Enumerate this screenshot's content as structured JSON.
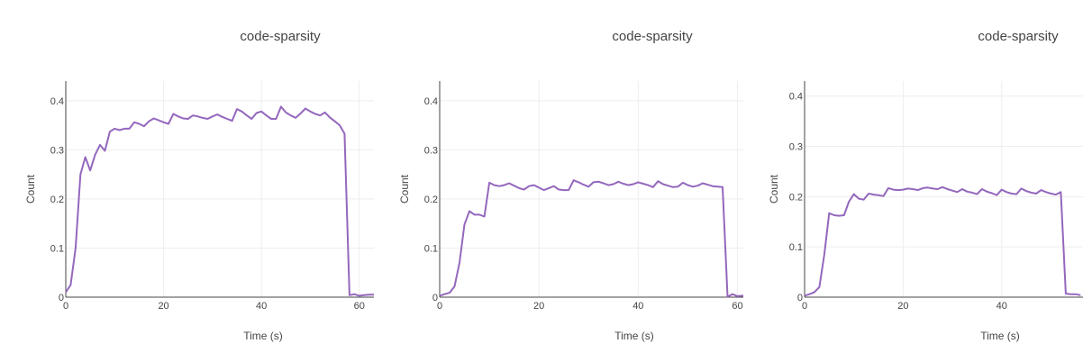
{
  "chart_data": [
    {
      "type": "line",
      "title": "code-sparsity",
      "xlabel": "Time (s)",
      "ylabel": "Count",
      "xlim": [
        0,
        63
      ],
      "ylim": [
        0,
        0.44
      ],
      "xticks": [
        0,
        20,
        40,
        60
      ],
      "yticks": [
        0,
        0.1,
        0.2,
        0.3,
        0.4
      ],
      "ytick_labels": [
        "0",
        "0.1",
        "0.2",
        "0.3",
        "0.4"
      ],
      "grid": true,
      "series": [
        {
          "color": "#9467bd",
          "x": [
            0,
            1,
            2,
            3,
            4,
            5,
            6,
            7,
            8,
            9,
            10,
            11,
            12,
            13,
            14,
            15,
            16,
            17,
            18,
            19,
            20,
            21,
            22,
            23,
            24,
            25,
            26,
            27,
            28,
            29,
            30,
            31,
            32,
            33,
            34,
            35,
            36,
            37,
            38,
            39,
            40,
            41,
            42,
            43,
            44,
            45,
            46,
            47,
            48,
            49,
            50,
            51,
            52,
            53,
            54,
            55,
            56,
            57,
            58,
            59,
            60,
            61,
            62,
            63
          ],
          "y": [
            0.01,
            0.025,
            0.1,
            0.25,
            0.285,
            0.258,
            0.29,
            0.31,
            0.298,
            0.337,
            0.343,
            0.34,
            0.343,
            0.343,
            0.356,
            0.353,
            0.348,
            0.358,
            0.364,
            0.36,
            0.356,
            0.353,
            0.373,
            0.368,
            0.364,
            0.363,
            0.37,
            0.368,
            0.365,
            0.363,
            0.368,
            0.372,
            0.367,
            0.363,
            0.359,
            0.383,
            0.378,
            0.37,
            0.363,
            0.375,
            0.378,
            0.37,
            0.363,
            0.363,
            0.388,
            0.376,
            0.37,
            0.365,
            0.374,
            0.384,
            0.378,
            0.373,
            0.37,
            0.376,
            0.366,
            0.358,
            0.35,
            0.333,
            0.004,
            0.006,
            0.003,
            0.004,
            0.005,
            0.005
          ]
        }
      ]
    },
    {
      "type": "line",
      "title": "code-sparsity",
      "xlabel": "Time (s)",
      "ylabel": "Count",
      "xlim": [
        0,
        63
      ],
      "ylim": [
        0,
        0.44
      ],
      "xticks": [
        0,
        20,
        40,
        60
      ],
      "yticks": [
        0,
        0.1,
        0.2,
        0.3,
        0.4
      ],
      "ytick_labels": [
        "0",
        "0.1",
        "0.2",
        "0.3",
        "0.4"
      ],
      "grid": true,
      "series": [
        {
          "color": "#9467bd",
          "x": [
            0,
            1,
            2,
            3,
            4,
            5,
            6,
            7,
            8,
            9,
            10,
            11,
            12,
            13,
            14,
            15,
            16,
            17,
            18,
            19,
            20,
            21,
            22,
            23,
            24,
            25,
            26,
            27,
            28,
            29,
            30,
            31,
            32,
            33,
            34,
            35,
            36,
            37,
            38,
            39,
            40,
            41,
            42,
            43,
            44,
            45,
            46,
            47,
            48,
            49,
            50,
            51,
            52,
            53,
            54,
            55,
            56,
            57,
            58,
            59,
            60,
            61,
            62,
            63
          ],
          "y": [
            0.003,
            0.006,
            0.009,
            0.022,
            0.07,
            0.148,
            0.175,
            0.168,
            0.168,
            0.164,
            0.233,
            0.228,
            0.226,
            0.228,
            0.232,
            0.227,
            0.222,
            0.219,
            0.226,
            0.228,
            0.223,
            0.218,
            0.222,
            0.226,
            0.219,
            0.218,
            0.218,
            0.238,
            0.234,
            0.229,
            0.225,
            0.234,
            0.235,
            0.232,
            0.228,
            0.23,
            0.235,
            0.231,
            0.228,
            0.23,
            0.234,
            0.231,
            0.228,
            0.224,
            0.236,
            0.23,
            0.227,
            0.224,
            0.225,
            0.233,
            0.228,
            0.225,
            0.227,
            0.232,
            0.229,
            0.226,
            0.225,
            0.224,
            0.001,
            0.006,
            0.002,
            0.003,
            0.003,
            0.003
          ]
        }
      ]
    },
    {
      "type": "line",
      "title": "code-sparsity",
      "xlabel": "Time (s)",
      "ylabel": "Count",
      "xlim": [
        0,
        56.5
      ],
      "ylim": [
        0,
        0.43
      ],
      "xticks": [
        0,
        20,
        40
      ],
      "yticks": [
        0,
        0.1,
        0.2,
        0.3,
        0.4
      ],
      "ytick_labels": [
        "0",
        "0.1",
        "0.2",
        "0.3",
        "0.4"
      ],
      "grid": true,
      "series": [
        {
          "color": "#9467bd",
          "x": [
            0,
            1,
            2,
            3,
            4,
            5,
            6,
            7,
            8,
            9,
            10,
            11,
            12,
            13,
            14,
            15,
            16,
            17,
            18,
            19,
            20,
            21,
            22,
            23,
            24,
            25,
            26,
            27,
            28,
            29,
            30,
            31,
            32,
            33,
            34,
            35,
            36,
            37,
            38,
            39,
            40,
            41,
            42,
            43,
            44,
            45,
            46,
            47,
            48,
            49,
            50,
            51,
            52,
            53,
            54,
            55,
            56
          ],
          "y": [
            0.003,
            0.006,
            0.01,
            0.02,
            0.085,
            0.167,
            0.163,
            0.162,
            0.163,
            0.19,
            0.205,
            0.196,
            0.194,
            0.206,
            0.204,
            0.203,
            0.201,
            0.217,
            0.214,
            0.213,
            0.214,
            0.216,
            0.215,
            0.213,
            0.217,
            0.218,
            0.216,
            0.215,
            0.219,
            0.215,
            0.212,
            0.209,
            0.215,
            0.21,
            0.208,
            0.205,
            0.215,
            0.21,
            0.207,
            0.203,
            0.214,
            0.209,
            0.206,
            0.205,
            0.216,
            0.211,
            0.208,
            0.206,
            0.213,
            0.209,
            0.206,
            0.204,
            0.209,
            0.007,
            0.006,
            0.006,
            0.004
          ]
        }
      ]
    }
  ]
}
